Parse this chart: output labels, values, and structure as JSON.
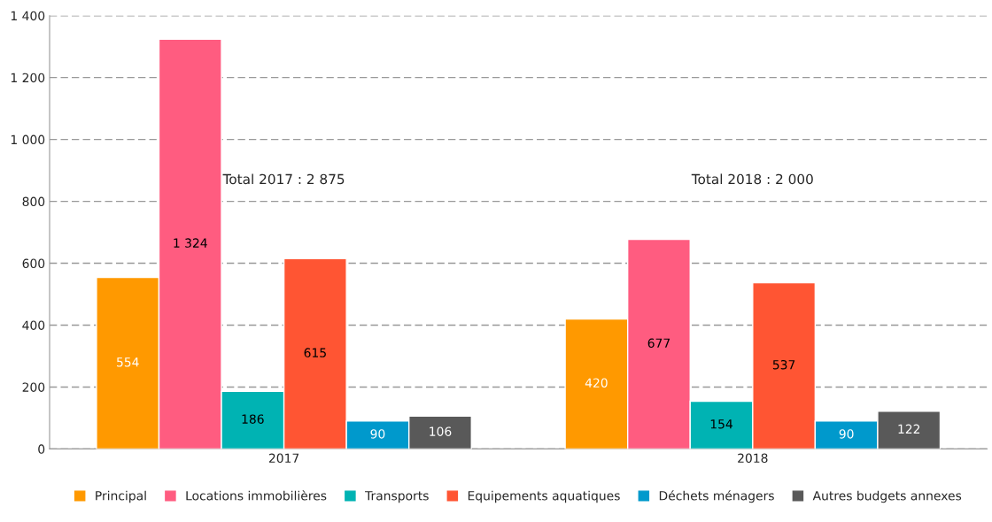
{
  "chart_data": {
    "type": "bar",
    "categories": [
      "2017",
      "2018"
    ],
    "series": [
      {
        "name": "Principal",
        "color": "#ff9900",
        "values": [
          554,
          420
        ],
        "value_labels": [
          "554",
          "420"
        ]
      },
      {
        "name": "Locations immobilières",
        "color": "#ff5c80",
        "values": [
          1324,
          677
        ],
        "value_labels": [
          "1 324",
          "677"
        ]
      },
      {
        "name": "Transports",
        "color": "#00b3b3",
        "values": [
          186,
          154
        ],
        "value_labels": [
          "186",
          "154"
        ]
      },
      {
        "name": "Equipements aquatiques",
        "color": "#ff5533",
        "values": [
          615,
          537
        ],
        "value_labels": [
          "615",
          "537"
        ]
      },
      {
        "name": "Déchets ménagers",
        "color": "#0099cc",
        "values": [
          90,
          90
        ],
        "value_labels": [
          "90",
          "90"
        ]
      },
      {
        "name": "Autres budgets annexes",
        "color": "#595959",
        "values": [
          106,
          122
        ],
        "value_labels": [
          "106",
          "122"
        ]
      }
    ],
    "ylim": [
      0,
      1400
    ],
    "yticks": [
      0,
      200,
      400,
      600,
      800,
      {
        "value": 1000,
        "label": "1 000"
      },
      {
        "value": 1200,
        "label": "1 200"
      },
      {
        "value": 1400,
        "label": "1 400"
      }
    ],
    "grid": "y",
    "legend": "bottom",
    "annotations": [
      "Total 2017 : 2 875",
      "Total 2018 : 2 000"
    ]
  }
}
